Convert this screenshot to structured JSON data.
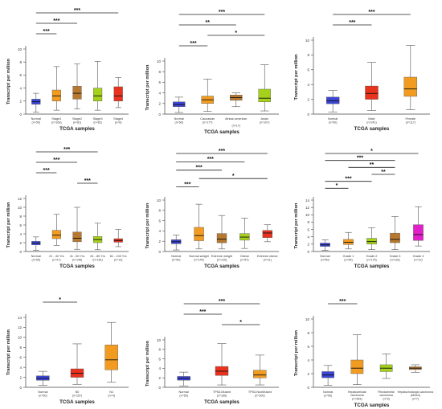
{
  "chart_data": [
    {
      "type": "boxplot",
      "xlabel": "TCGA samples",
      "ylabel": "Transcript per million",
      "ylim": [
        0,
        10
      ],
      "yticks": [
        0,
        2,
        4,
        6,
        8,
        10
      ],
      "categories": [
        "Normal",
        "Stage1",
        "Stage2",
        "Stage3",
        "Stage4"
      ],
      "counts": [
        "(n=50)",
        "(n=169)",
        "(n=81)",
        "(n=82)",
        "(n=6)"
      ],
      "colors": [
        "#3b46d6",
        "#f29b21",
        "#b8782f",
        "#a6d11a",
        "#e8321e"
      ],
      "boxes": [
        {
          "min": 0.3,
          "q1": 1.5,
          "median": 1.9,
          "q3": 2.3,
          "max": 3.2
        },
        {
          "min": 0.6,
          "q1": 2.0,
          "median": 2.8,
          "q3": 3.7,
          "max": 7.3
        },
        {
          "min": 0.8,
          "q1": 2.3,
          "median": 3.2,
          "q3": 4.3,
          "max": 7.7
        },
        {
          "min": 0.6,
          "q1": 2.0,
          "median": 2.8,
          "q3": 4.0,
          "max": 8.1
        },
        {
          "min": 1.0,
          "q1": 2.0,
          "median": 2.8,
          "q3": 4.2,
          "max": 5.6
        }
      ],
      "significance": [
        {
          "from": 0,
          "to": 4,
          "label": "***"
        },
        {
          "from": 0,
          "to": 2,
          "label": "***"
        },
        {
          "from": 0,
          "to": 1,
          "label": "***"
        }
      ]
    },
    {
      "type": "boxplot",
      "xlabel": "TCGA samples",
      "ylabel": "Transcript per million",
      "ylim": [
        0,
        10
      ],
      "yticks": [
        0,
        2,
        4,
        6,
        8,
        10
      ],
      "categories": [
        "Normal",
        "Caucasian",
        "African-american",
        "Asian"
      ],
      "counts": [
        "(n=50)",
        "(n=177)",
        "(n=17)",
        "(n=107)"
      ],
      "colors": [
        "#3b46d6",
        "#f29b21",
        "#b8782f",
        "#a6d11a"
      ],
      "boxes": [
        {
          "min": 0.3,
          "q1": 1.4,
          "median": 1.8,
          "q3": 2.3,
          "max": 3.2
        },
        {
          "min": 0.5,
          "q1": 2.0,
          "median": 2.7,
          "q3": 3.4,
          "max": 6.6
        },
        {
          "min": 1.4,
          "q1": 2.6,
          "median": 3.1,
          "q3": 3.6,
          "max": 4.0
        },
        {
          "min": 0.6,
          "q1": 2.3,
          "median": 3.0,
          "q3": 4.7,
          "max": 9.3
        }
      ],
      "significance": [
        {
          "from": 0,
          "to": 3,
          "label": "***"
        },
        {
          "from": 0,
          "to": 2,
          "label": "**"
        },
        {
          "from": 1,
          "to": 3,
          "label": "*"
        },
        {
          "from": 0,
          "to": 1,
          "label": "***"
        }
      ]
    },
    {
      "type": "boxplot",
      "xlabel": "TCGA samples",
      "ylabel": "Transcript per million",
      "ylim": [
        0,
        10
      ],
      "yticks": [
        0,
        2,
        4,
        6,
        8,
        10
      ],
      "categories": [
        "Normal",
        "Male",
        "Female"
      ],
      "counts": [
        "(n=50)",
        "(n=241)",
        "(n=117)"
      ],
      "colors": [
        "#3b46d6",
        "#e8321e",
        "#f29b21"
      ],
      "boxes": [
        {
          "min": 0.3,
          "q1": 1.4,
          "median": 1.8,
          "q3": 2.3,
          "max": 3.2
        },
        {
          "min": 0.5,
          "q1": 2.0,
          "median": 2.8,
          "q3": 3.8,
          "max": 7.0
        },
        {
          "min": 0.6,
          "q1": 2.4,
          "median": 3.4,
          "q3": 5.0,
          "max": 9.3
        }
      ],
      "significance": [
        {
          "from": 0,
          "to": 2,
          "label": "***"
        },
        {
          "from": 0,
          "to": 1,
          "label": "***"
        }
      ]
    },
    {
      "type": "boxplot",
      "xlabel": "TCGA samples",
      "ylabel": "Transcript per million",
      "ylim": [
        0,
        12
      ],
      "yticks": [
        0,
        2,
        4,
        6,
        8,
        10,
        12
      ],
      "categories": [
        "Normal",
        "21 - 40 Yrs",
        "41 - 60 Yrs",
        "61 - 80 Yrs",
        "81 - 100 Yrs"
      ],
      "counts": [
        "(n=50)",
        "(n=27)",
        "(n=146)",
        "(n=181)",
        "(n=13)"
      ],
      "colors": [
        "#3b46d6",
        "#f29b21",
        "#b8782f",
        "#a6d11a",
        "#e8321e"
      ],
      "boxes": [
        {
          "min": 0.3,
          "q1": 1.5,
          "median": 1.9,
          "q3": 2.3,
          "max": 3.3
        },
        {
          "min": 1.4,
          "q1": 2.9,
          "median": 3.7,
          "q3": 4.8,
          "max": 8.4
        },
        {
          "min": 0.5,
          "q1": 2.2,
          "median": 3.0,
          "q3": 4.4,
          "max": 10.0
        },
        {
          "min": 0.4,
          "q1": 2.0,
          "median": 2.7,
          "q3": 3.4,
          "max": 6.4
        },
        {
          "min": 1.1,
          "q1": 2.1,
          "median": 2.5,
          "q3": 2.9,
          "max": 5.0
        }
      ],
      "significance": [
        {
          "from": 0,
          "to": 3,
          "label": "***"
        },
        {
          "from": 0,
          "to": 2,
          "label": "***"
        },
        {
          "from": 0,
          "to": 1,
          "label": "***"
        },
        {
          "from": 2,
          "to": 3,
          "label": "***"
        }
      ]
    },
    {
      "type": "boxplot",
      "xlabel": "TCGA samples",
      "ylabel": "Transcript per million",
      "ylim": [
        0,
        10
      ],
      "yticks": [
        0,
        2,
        4,
        6,
        8,
        10
      ],
      "categories": [
        "Normal",
        "Normal weight",
        "Extreme weight",
        "Obese",
        "Extreme obese"
      ],
      "counts": [
        "(n=50)",
        "(n=144)",
        "(n=125)",
        "(n=57)",
        "(n=11)"
      ],
      "colors": [
        "#3b46d6",
        "#f29b21",
        "#b8782f",
        "#a6d11a",
        "#e8321e"
      ],
      "boxes": [
        {
          "min": 0.3,
          "q1": 1.5,
          "median": 1.9,
          "q3": 2.3,
          "max": 3.2
        },
        {
          "min": 0.5,
          "q1": 2.1,
          "median": 3.1,
          "q3": 4.7,
          "max": 9.2
        },
        {
          "min": 0.5,
          "q1": 1.7,
          "median": 2.4,
          "q3": 3.5,
          "max": 7.0
        },
        {
          "min": 0.6,
          "q1": 2.2,
          "median": 2.8,
          "q3": 3.5,
          "max": 6.5
        },
        {
          "min": 1.9,
          "q1": 2.7,
          "median": 3.6,
          "q3": 4.1,
          "max": 5.2
        }
      ],
      "significance": [
        {
          "from": 0,
          "to": 4,
          "label": "***"
        },
        {
          "from": 0,
          "to": 3,
          "label": "***"
        },
        {
          "from": 0,
          "to": 2,
          "label": "***"
        },
        {
          "from": 1,
          "to": 4,
          "label": "*"
        },
        {
          "from": 0,
          "to": 1,
          "label": "***"
        }
      ]
    },
    {
      "type": "boxplot",
      "xlabel": "TCGA samples",
      "ylabel": "Transcript per million",
      "ylim": [
        0,
        14
      ],
      "yticks": [
        0,
        2,
        4,
        6,
        8,
        10,
        12,
        14
      ],
      "categories": [
        "Normal",
        "Grade 1",
        "Grade 2",
        "Grade 3",
        "Grade 4"
      ],
      "counts": [
        "(n=50)",
        "(n=54)",
        "(n=175)",
        "(n=118)",
        "(n=12)"
      ],
      "colors": [
        "#3b46d6",
        "#f29b21",
        "#a6d11a",
        "#b8782f",
        "#e020c9"
      ],
      "boxes": [
        {
          "min": 0.3,
          "q1": 1.4,
          "median": 1.8,
          "q3": 2.3,
          "max": 3.2
        },
        {
          "min": 0.7,
          "q1": 1.9,
          "median": 2.5,
          "q3": 3.3,
          "max": 5.2
        },
        {
          "min": 0.5,
          "q1": 2.0,
          "median": 2.7,
          "q3": 3.6,
          "max": 6.5
        },
        {
          "min": 0.5,
          "q1": 2.4,
          "median": 3.3,
          "q3": 5.0,
          "max": 9.5
        },
        {
          "min": 1.5,
          "q1": 3.0,
          "median": 4.6,
          "q3": 7.3,
          "max": 12.2
        }
      ],
      "significance": [
        {
          "from": 0,
          "to": 4,
          "label": "*"
        },
        {
          "from": 0,
          "to": 3,
          "label": "***"
        },
        {
          "from": 1,
          "to": 3,
          "label": "**"
        },
        {
          "from": 2,
          "to": 3,
          "label": "**"
        },
        {
          "from": 0,
          "to": 2,
          "label": "***"
        },
        {
          "from": 0,
          "to": 1,
          "label": "*"
        }
      ]
    },
    {
      "type": "boxplot",
      "xlabel": "TCGA samples",
      "ylabel": "Transcript per million",
      "ylim": [
        0,
        14
      ],
      "yticks": [
        0,
        2,
        4,
        6,
        8,
        10,
        12,
        14
      ],
      "categories": [
        "Normal",
        "N0",
        "N1"
      ],
      "counts": [
        "(n=50)",
        "(n=157)",
        "(n=4)"
      ],
      "colors": [
        "#3b46d6",
        "#e8321e",
        "#f29b21"
      ],
      "boxes": [
        {
          "min": 0.4,
          "q1": 1.4,
          "median": 1.8,
          "q3": 2.3,
          "max": 3.2
        },
        {
          "min": 0.6,
          "q1": 2.0,
          "median": 2.8,
          "q3": 3.7,
          "max": 8.7
        },
        {
          "min": 1.0,
          "q1": 3.5,
          "median": 5.5,
          "q3": 8.5,
          "max": 13.0
        }
      ],
      "significance": [
        {
          "from": 0,
          "to": 1,
          "label": "*"
        }
      ]
    },
    {
      "type": "boxplot",
      "xlabel": "TCGA samples",
      "ylabel": "Transcript per million",
      "ylim": [
        0,
        10
      ],
      "yticks": [
        0,
        2,
        4,
        6,
        8,
        10
      ],
      "categories": [
        "Normal",
        "TP53-Mutant",
        "TP53-NonMutant"
      ],
      "counts": [
        "(n=50)",
        "(n=165)",
        "(n=200)"
      ],
      "colors": [
        "#3b46d6",
        "#e8321e",
        "#f29b21"
      ],
      "boxes": [
        {
          "min": 0.3,
          "q1": 1.5,
          "median": 1.9,
          "q3": 2.3,
          "max": 3.2
        },
        {
          "min": 0.5,
          "q1": 2.5,
          "median": 3.4,
          "q3": 4.4,
          "max": 9.2
        },
        {
          "min": 0.5,
          "q1": 2.0,
          "median": 2.6,
          "q3": 3.6,
          "max": 6.8
        }
      ],
      "significance": [
        {
          "from": 0,
          "to": 2,
          "label": "***"
        },
        {
          "from": 0,
          "to": 1,
          "label": "***"
        },
        {
          "from": 1,
          "to": 2,
          "label": "*"
        }
      ]
    },
    {
      "type": "boxplot",
      "xlabel": "TCGA samples",
      "ylabel": "Transcript per million",
      "ylim": [
        0,
        10
      ],
      "yticks": [
        0,
        2,
        4,
        6,
        8,
        10
      ],
      "categories": [
        "Normal",
        "Hepatocellular carcinoma",
        "Fibrolamellar carcinoma",
        "Hepatocholangio carcinoma (Mixed)"
      ],
      "counts": [
        "(n=50)",
        "(n=353)",
        "(n=3)",
        "(n=7)"
      ],
      "colors": [
        "#3b46d6",
        "#f29b21",
        "#a6d11a",
        "#b8782f"
      ],
      "boxes": [
        {
          "min": 0.3,
          "q1": 1.4,
          "median": 1.8,
          "q3": 2.3,
          "max": 3.2
        },
        {
          "min": 0.4,
          "q1": 2.0,
          "median": 2.8,
          "q3": 4.0,
          "max": 7.7
        },
        {
          "min": 1.3,
          "q1": 2.3,
          "median": 2.8,
          "q3": 3.3,
          "max": 4.9
        },
        {
          "min": 2.2,
          "q1": 2.6,
          "median": 2.8,
          "q3": 3.0,
          "max": 3.3
        }
      ],
      "significance": [
        {
          "from": 0,
          "to": 1,
          "label": "***"
        }
      ]
    }
  ]
}
